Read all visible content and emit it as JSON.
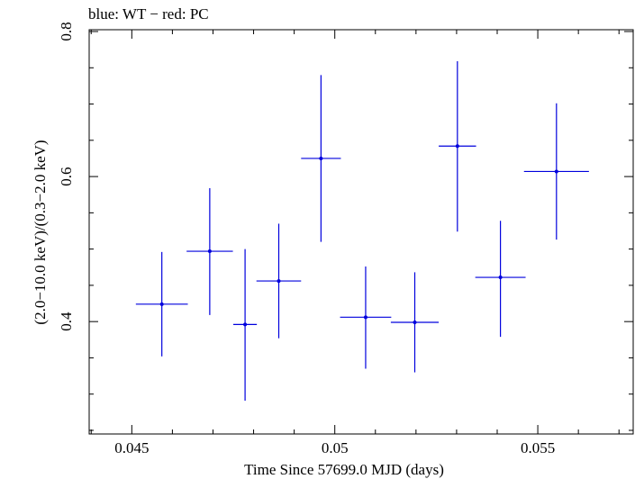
{
  "chart_data": {
    "type": "scatter",
    "title": "blue: WT − red: PC",
    "xlabel": "Time Since 57699.0 MJD (days)",
    "ylabel": "(2.0−10.0 keV)/(0.3−2.0 keV)",
    "xlim": [
      0.04395,
      0.05735
    ],
    "ylim": [
      0.245,
      0.8025
    ],
    "xticks": [
      {
        "value": 0.045,
        "label": "0.045"
      },
      {
        "value": 0.05,
        "label": "0.05"
      },
      {
        "value": 0.055,
        "label": "0.055"
      }
    ],
    "yticks": [
      {
        "value": 0.4,
        "label": "0.4"
      },
      {
        "value": 0.6,
        "label": "0.6"
      },
      {
        "value": 0.8,
        "label": "0.8"
      }
    ],
    "grid": false,
    "series": [
      {
        "color": "#0000dd",
        "points": [
          {
            "x": 0.04574,
            "y": 0.424,
            "xerr": 0.00064,
            "ylo": 0.352,
            "yhi": 0.496
          },
          {
            "x": 0.04692,
            "y": 0.497,
            "xerr": 0.00057,
            "ylo": 0.409,
            "yhi": 0.584
          },
          {
            "x": 0.04779,
            "y": 0.396,
            "xerr": 0.00029,
            "ylo": 0.291,
            "yhi": 0.5
          },
          {
            "x": 0.04862,
            "y": 0.456,
            "xerr": 0.00055,
            "ylo": 0.377,
            "yhi": 0.535
          },
          {
            "x": 0.04966,
            "y": 0.625,
            "xerr": 0.00049,
            "ylo": 0.51,
            "yhi": 0.74
          },
          {
            "x": 0.05076,
            "y": 0.406,
            "xerr": 0.00063,
            "ylo": 0.335,
            "yhi": 0.476
          },
          {
            "x": 0.05197,
            "y": 0.399,
            "xerr": 0.00059,
            "ylo": 0.33,
            "yhi": 0.468
          },
          {
            "x": 0.05302,
            "y": 0.642,
            "xerr": 0.00046,
            "ylo": 0.524,
            "yhi": 0.759
          },
          {
            "x": 0.05408,
            "y": 0.461,
            "xerr": 0.00062,
            "ylo": 0.379,
            "yhi": 0.539
          },
          {
            "x": 0.05546,
            "y": 0.607,
            "xerr": 0.0008,
            "ylo": 0.513,
            "yhi": 0.701
          }
        ]
      }
    ]
  }
}
